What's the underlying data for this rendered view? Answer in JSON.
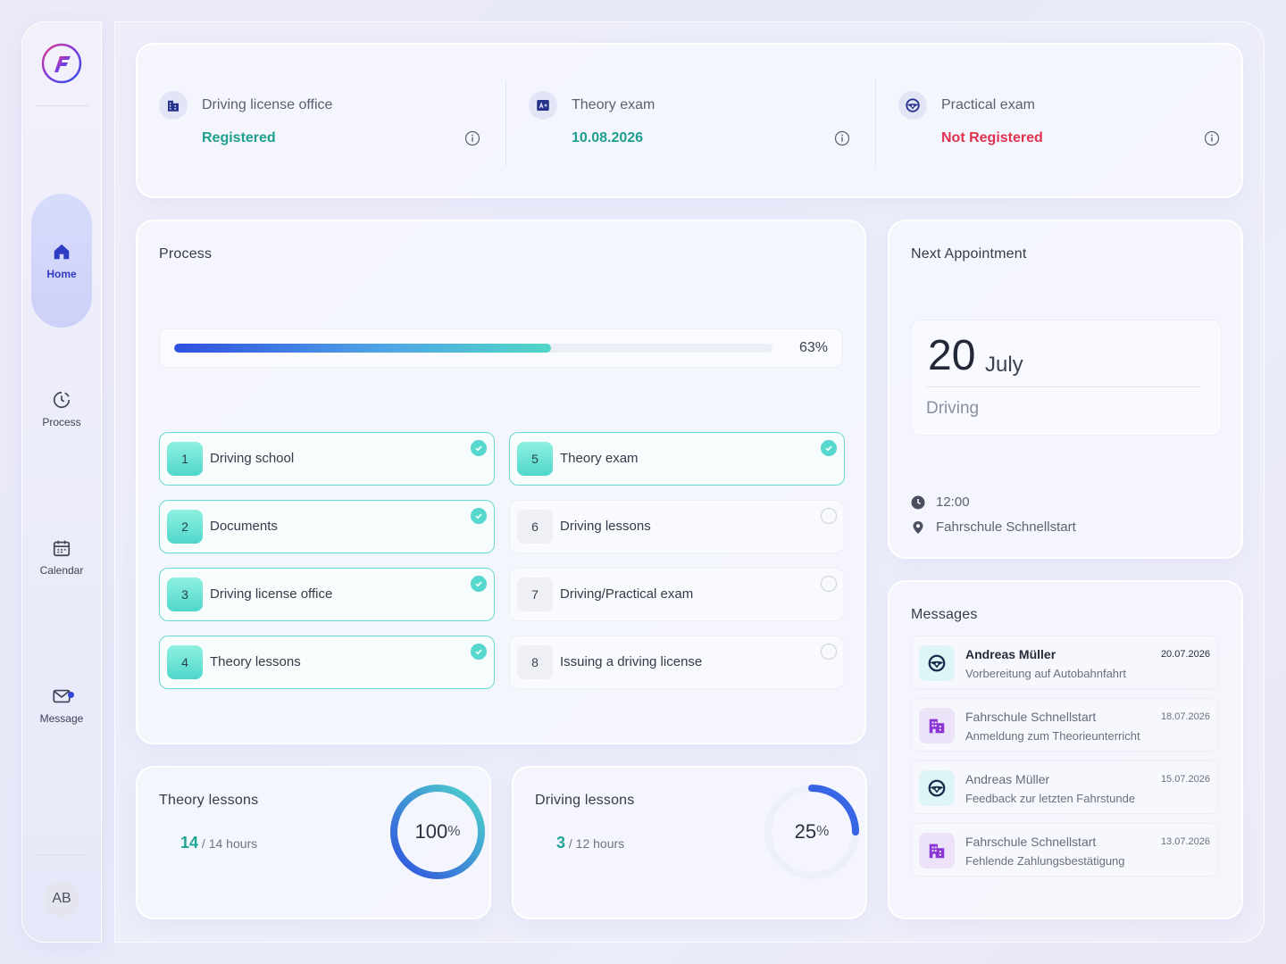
{
  "sidebar": {
    "nav": [
      {
        "label": "Home",
        "icon": "home-icon",
        "active": true
      },
      {
        "label": "Process",
        "icon": "process-icon"
      },
      {
        "label": "Calendar",
        "icon": "calendar-icon"
      },
      {
        "label": "Message",
        "icon": "message-icon",
        "has_notification": true
      }
    ],
    "avatar_initials": "AB"
  },
  "status": [
    {
      "label": "Driving license office",
      "value": "Registered",
      "value_color": "#1f9f8f",
      "icon": "building-icon"
    },
    {
      "label": "Theory exam",
      "value": "10.08.2026",
      "value_color": "#1f9f8f",
      "icon": "exam-card-icon"
    },
    {
      "label": "Practical exam",
      "value": "Not Registered",
      "value_color": "#e0324f",
      "icon": "steering-wheel-icon"
    }
  ],
  "process": {
    "title": "Process",
    "progress_percent": 63,
    "progress_label": "63%",
    "steps": [
      {
        "num": "1",
        "label": "Driving school",
        "done": true
      },
      {
        "num": "2",
        "label": "Documents",
        "done": true
      },
      {
        "num": "3",
        "label": "Driving license office",
        "done": true
      },
      {
        "num": "4",
        "label": "Theory lessons",
        "done": true
      },
      {
        "num": "5",
        "label": "Theory exam",
        "done": true
      },
      {
        "num": "6",
        "label": "Driving lessons",
        "done": false
      },
      {
        "num": "7",
        "label": "Driving/Practical exam",
        "done": false
      },
      {
        "num": "8",
        "label": "Issuing a driving license",
        "done": false
      }
    ]
  },
  "appointment": {
    "title": "Next Appointment",
    "day": "20",
    "month": "July",
    "type": "Driving",
    "time": "12:00",
    "location": "Fahrschule Schnellstart"
  },
  "messages": {
    "title": "Messages",
    "items": [
      {
        "sender": "Andreas Müller",
        "date": "20.07.2026",
        "preview": "Vorbereitung auf Autobahnfahrt",
        "icon": "steering-wheel-icon",
        "unread": true
      },
      {
        "sender": "Fahrschule Schnellstart",
        "date": "18.07.2026",
        "preview": "Anmeldung zum Theorieunterricht",
        "icon": "building-icon",
        "unread": false
      },
      {
        "sender": "Andreas Müller",
        "date": "15.07.2026",
        "preview": "Feedback zur letzten Fahrstunde",
        "icon": "steering-wheel-icon",
        "unread": false
      },
      {
        "sender": "Fahrschule Schnellstart",
        "date": "13.07.2026",
        "preview": "Fehlende Zahlungsbestätigung",
        "icon": "building-icon",
        "unread": false
      }
    ]
  },
  "theory_lessons": {
    "title": "Theory lessons",
    "completed": "14",
    "total_text": "/ 14 hours",
    "percent": 100,
    "percent_number": "100",
    "percent_sign": "%"
  },
  "driving_lessons": {
    "title": "Driving lessons",
    "completed": "3",
    "total_text": "/ 12 hours",
    "percent": 25,
    "percent_number": "25",
    "percent_sign": "%"
  },
  "colors": {
    "accent": "#2d3cc2",
    "teal": "#4fd7cb",
    "success": "#1f9f8f",
    "danger": "#e0324f"
  }
}
